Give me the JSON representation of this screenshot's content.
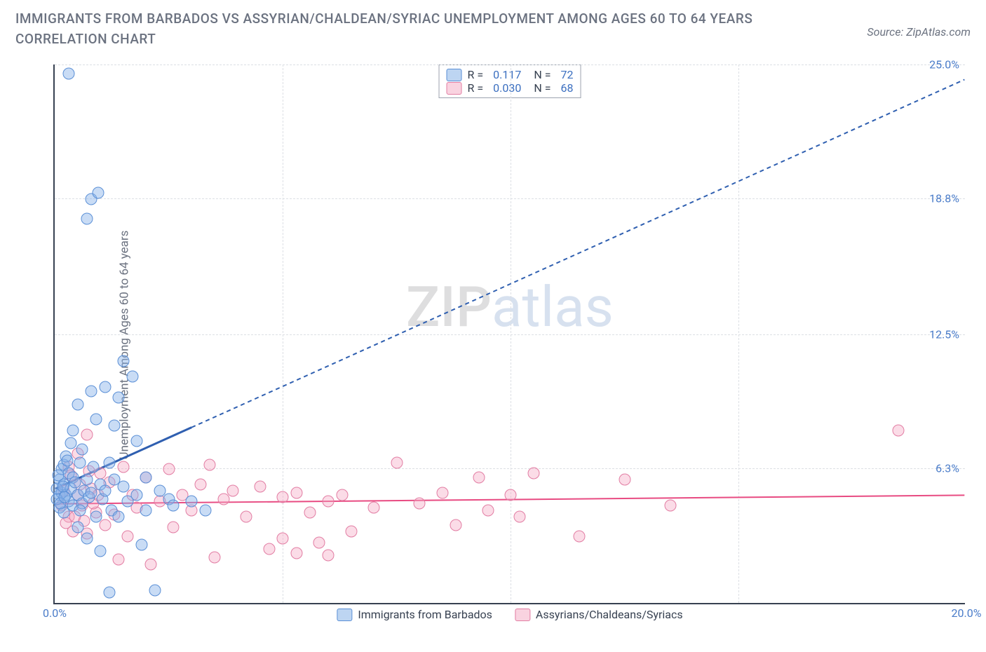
{
  "title": "IMMIGRANTS FROM BARBADOS VS ASSYRIAN/CHALDEAN/SYRIAC UNEMPLOYMENT AMONG AGES 60 TO 64 YEARS CORRELATION CHART",
  "source": "Source: ZipAtlas.com",
  "watermark_zip": "ZIP",
  "watermark_atlas": "atlas",
  "chart": {
    "type": "scatter",
    "ylabel": "Unemployment Among Ages 60 to 64 years",
    "xlim": [
      0,
      20
    ],
    "ylim": [
      0,
      25
    ],
    "x_ticks": [
      {
        "v": 0.0,
        "label": "0.0%"
      },
      {
        "v": 20.0,
        "label": "20.0%"
      }
    ],
    "y_ticks": [
      {
        "v": 6.3,
        "label": "6.3%"
      },
      {
        "v": 12.5,
        "label": "12.5%"
      },
      {
        "v": 18.8,
        "label": "18.8%"
      },
      {
        "v": 25.0,
        "label": "25.0%"
      }
    ],
    "grid_h": [
      6.3,
      12.5,
      18.8,
      25.0
    ],
    "grid_v": [
      5,
      10,
      15
    ],
    "background_color": "#ffffff",
    "grid_color": "#dcdfe4",
    "axis_color": "#374151",
    "series": [
      {
        "name": "Immigrants from Barbados",
        "color_fill": "rgba(135,178,232,0.45)",
        "color_stroke": "#5a8fd6",
        "marker_size": 17,
        "R": "0.117",
        "N": "72",
        "trend": {
          "x1": 0,
          "y1": 5.3,
          "x2": 20,
          "y2": 24.3,
          "solid_until_x": 3.0,
          "stroke": "#2f5fb0",
          "width": 2,
          "dash": "6,5"
        },
        "points": [
          [
            0.1,
            5.0
          ],
          [
            0.1,
            5.7
          ],
          [
            0.1,
            4.4
          ],
          [
            0.15,
            6.2
          ],
          [
            0.15,
            5.1
          ],
          [
            0.2,
            6.4
          ],
          [
            0.2,
            5.5
          ],
          [
            0.2,
            4.2
          ],
          [
            0.25,
            5.0
          ],
          [
            0.25,
            6.8
          ],
          [
            0.3,
            6.0
          ],
          [
            0.3,
            4.7
          ],
          [
            0.35,
            7.4
          ],
          [
            0.35,
            5.3
          ],
          [
            0.4,
            8.0
          ],
          [
            0.4,
            4.5
          ],
          [
            0.4,
            5.8
          ],
          [
            0.5,
            9.2
          ],
          [
            0.5,
            5.0
          ],
          [
            0.5,
            3.5
          ],
          [
            0.55,
            6.5
          ],
          [
            0.6,
            7.1
          ],
          [
            0.6,
            4.6
          ],
          [
            0.65,
            5.2
          ],
          [
            0.7,
            3.0
          ],
          [
            0.7,
            5.7
          ],
          [
            0.75,
            4.9
          ],
          [
            0.8,
            9.8
          ],
          [
            0.8,
            5.1
          ],
          [
            0.85,
            6.3
          ],
          [
            0.9,
            4.0
          ],
          [
            0.9,
            8.5
          ],
          [
            1.0,
            5.5
          ],
          [
            1.0,
            2.4
          ],
          [
            1.05,
            4.8
          ],
          [
            1.1,
            10.0
          ],
          [
            1.1,
            5.2
          ],
          [
            1.2,
            0.5
          ],
          [
            1.2,
            6.5
          ],
          [
            1.25,
            4.3
          ],
          [
            1.3,
            8.2
          ],
          [
            1.3,
            5.7
          ],
          [
            1.4,
            9.5
          ],
          [
            1.4,
            4.0
          ],
          [
            1.5,
            11.2
          ],
          [
            1.5,
            5.4
          ],
          [
            1.6,
            4.7
          ],
          [
            1.7,
            10.5
          ],
          [
            1.8,
            5.0
          ],
          [
            1.8,
            7.5
          ],
          [
            1.9,
            2.7
          ],
          [
            2.0,
            5.8
          ],
          [
            2.0,
            4.3
          ],
          [
            2.2,
            0.6
          ],
          [
            2.3,
            5.2
          ],
          [
            2.5,
            4.8
          ],
          [
            2.6,
            4.5
          ],
          [
            0.3,
            24.5
          ],
          [
            0.8,
            18.7
          ],
          [
            0.95,
            19.0
          ],
          [
            0.7,
            17.8
          ],
          [
            3.0,
            4.7
          ],
          [
            3.3,
            4.3
          ],
          [
            0.05,
            4.8
          ],
          [
            0.05,
            5.3
          ],
          [
            0.08,
            5.9
          ],
          [
            0.12,
            4.6
          ],
          [
            0.18,
            5.4
          ],
          [
            0.22,
            4.9
          ],
          [
            0.28,
            6.6
          ],
          [
            0.45,
            5.6
          ],
          [
            0.55,
            4.3
          ]
        ]
      },
      {
        "name": "Assyrians/Chaldeans/Syriacs",
        "color_fill": "rgba(244,168,194,0.4)",
        "color_stroke": "#e27da3",
        "marker_size": 17,
        "R": "0.030",
        "N": "68",
        "trend": {
          "x1": 0,
          "y1": 4.6,
          "x2": 20,
          "y2": 5.0,
          "solid_until_x": 20,
          "stroke": "#e84b82",
          "width": 2,
          "dash": null
        },
        "points": [
          [
            0.2,
            5.2
          ],
          [
            0.3,
            6.3
          ],
          [
            0.3,
            4.0
          ],
          [
            0.4,
            3.3
          ],
          [
            0.5,
            5.0
          ],
          [
            0.5,
            6.9
          ],
          [
            0.6,
            4.5
          ],
          [
            0.7,
            7.8
          ],
          [
            0.7,
            3.2
          ],
          [
            0.8,
            5.3
          ],
          [
            0.9,
            4.2
          ],
          [
            1.0,
            6.0
          ],
          [
            1.1,
            3.6
          ],
          [
            1.2,
            5.6
          ],
          [
            1.3,
            4.1
          ],
          [
            1.4,
            2.0
          ],
          [
            1.5,
            6.3
          ],
          [
            1.6,
            3.1
          ],
          [
            1.7,
            5.0
          ],
          [
            1.8,
            4.4
          ],
          [
            2.0,
            5.8
          ],
          [
            2.1,
            1.8
          ],
          [
            2.3,
            4.7
          ],
          [
            2.5,
            6.2
          ],
          [
            2.6,
            3.5
          ],
          [
            2.8,
            5.0
          ],
          [
            3.0,
            4.3
          ],
          [
            3.2,
            5.5
          ],
          [
            3.4,
            6.4
          ],
          [
            3.5,
            2.1
          ],
          [
            3.7,
            4.8
          ],
          [
            3.9,
            5.2
          ],
          [
            4.2,
            4.0
          ],
          [
            4.5,
            5.4
          ],
          [
            4.7,
            2.5
          ],
          [
            5.0,
            4.9
          ],
          [
            5.0,
            3.0
          ],
          [
            5.3,
            5.1
          ],
          [
            5.3,
            2.3
          ],
          [
            5.6,
            4.2
          ],
          [
            5.8,
            2.8
          ],
          [
            6.0,
            4.7
          ],
          [
            6.0,
            2.2
          ],
          [
            6.3,
            5.0
          ],
          [
            6.5,
            3.3
          ],
          [
            7.0,
            4.4
          ],
          [
            7.5,
            6.5
          ],
          [
            8.0,
            4.6
          ],
          [
            8.5,
            5.1
          ],
          [
            8.8,
            3.6
          ],
          [
            9.3,
            5.8
          ],
          [
            9.5,
            4.3
          ],
          [
            10.0,
            5.0
          ],
          [
            10.2,
            4.0
          ],
          [
            10.5,
            6.0
          ],
          [
            11.5,
            3.1
          ],
          [
            12.5,
            5.7
          ],
          [
            13.5,
            4.5
          ],
          [
            18.5,
            8.0
          ],
          [
            0.15,
            4.5
          ],
          [
            0.25,
            3.7
          ],
          [
            0.35,
            5.9
          ],
          [
            0.45,
            4.0
          ],
          [
            0.55,
            5.5
          ],
          [
            0.65,
            3.8
          ],
          [
            0.75,
            6.1
          ],
          [
            0.85,
            4.6
          ],
          [
            0.95,
            5.0
          ]
        ]
      }
    ],
    "legend_box": {
      "r_label": "R =",
      "n_label": "N ="
    },
    "bottom_legend": [
      {
        "swatch": "blue",
        "label": "Immigrants from Barbados"
      },
      {
        "swatch": "pink",
        "label": "Assyrians/Chaldeans/Syriacs"
      }
    ]
  }
}
